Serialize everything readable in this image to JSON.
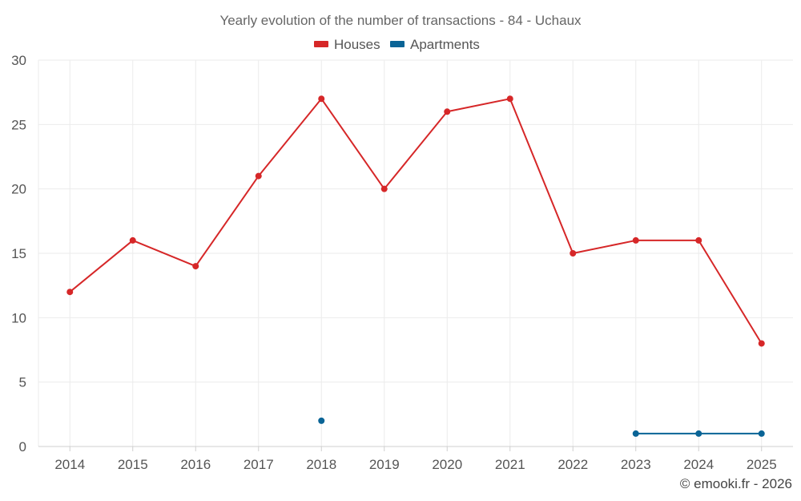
{
  "chart_data": {
    "type": "line",
    "title": "Yearly evolution of the number of transactions - 84 - Uchaux",
    "xlabel": "",
    "ylabel": "",
    "categories": [
      "2014",
      "2015",
      "2016",
      "2017",
      "2018",
      "2019",
      "2020",
      "2021",
      "2022",
      "2023",
      "2024",
      "2025"
    ],
    "ylim": [
      0,
      30
    ],
    "yticks": [
      0,
      5,
      10,
      15,
      20,
      25,
      30
    ],
    "grid": true,
    "legend_position": "top-center",
    "series": [
      {
        "name": "Houses",
        "color": "#d62728",
        "values": [
          12,
          16,
          14,
          21,
          27,
          20,
          26,
          27,
          15,
          16,
          16,
          8
        ]
      },
      {
        "name": "Apartments",
        "color": "#0a6496",
        "values": [
          null,
          null,
          null,
          null,
          2,
          null,
          null,
          null,
          null,
          1,
          1,
          1
        ]
      }
    ]
  },
  "credit": "© emooki.fr - 2026"
}
